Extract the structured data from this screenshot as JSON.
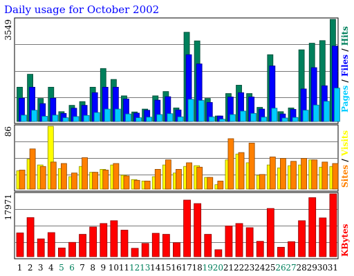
{
  "chart_data": [
    {
      "type": "bar",
      "title": "Daily usage for October 2002",
      "categories": [
        "1",
        "2",
        "3",
        "4",
        "5",
        "6",
        "7",
        "8",
        "9",
        "10",
        "11",
        "12",
        "13",
        "14",
        "15",
        "16",
        "17",
        "18",
        "19",
        "20",
        "21",
        "22",
        "23",
        "24",
        "25",
        "26",
        "27",
        "28",
        "29",
        "30",
        "31"
      ],
      "weekend_days": [
        "5",
        "6",
        "12",
        "13",
        "19",
        "20",
        "26",
        "27"
      ],
      "ymax_label": "3549",
      "ylim": [
        0,
        3549
      ],
      "grid": true,
      "legend": [
        "Pages",
        "/",
        "Files",
        "/",
        "Hits"
      ],
      "series": [
        {
          "name": "Hits",
          "color": "#00805c",
          "values": [
            1190,
            1640,
            800,
            1190,
            340,
            560,
            690,
            1190,
            1840,
            1460,
            890,
            330,
            430,
            890,
            1040,
            470,
            3100,
            2800,
            800,
            190,
            970,
            1260,
            970,
            490,
            2320,
            340,
            470,
            2490,
            2720,
            2810,
            3549
          ]
        },
        {
          "name": "Files",
          "color": "#0000ff",
          "values": [
            810,
            1190,
            620,
            810,
            280,
            460,
            560,
            1000,
            1190,
            1190,
            780,
            290,
            390,
            740,
            860,
            400,
            2320,
            2000,
            660,
            190,
            850,
            1000,
            850,
            430,
            1930,
            260,
            420,
            1130,
            1870,
            1240,
            2620
          ]
        },
        {
          "name": "Pages",
          "color": "#00ccff",
          "values": [
            220,
            390,
            180,
            220,
            130,
            170,
            210,
            310,
            430,
            430,
            260,
            130,
            150,
            240,
            270,
            160,
            770,
            730,
            160,
            80,
            240,
            360,
            280,
            150,
            460,
            120,
            140,
            390,
            570,
            700,
            1160
          ]
        }
      ]
    },
    {
      "type": "bar",
      "ymax_label": "86",
      "ylim": [
        0,
        86
      ],
      "grid": true,
      "legend": [
        "Sites",
        "/",
        "Visits"
      ],
      "series": [
        {
          "name": "Visits",
          "color": "#ffff00",
          "values": [
            25,
            41,
            33,
            86,
            28,
            17,
            31,
            23,
            27,
            33,
            19,
            13,
            11,
            17,
            33,
            22,
            31,
            32,
            16,
            6,
            40,
            48,
            36,
            19,
            33,
            29,
            32,
            33,
            40,
            30,
            31
          ]
        },
        {
          "name": "Sites",
          "color": "#ff8000",
          "values": [
            26,
            55,
            31,
            37,
            35,
            22,
            43,
            23,
            26,
            35,
            18,
            12,
            11,
            27,
            40,
            27,
            36,
            30,
            16,
            11,
            69,
            50,
            63,
            20,
            44,
            42,
            38,
            42,
            40,
            37,
            35
          ]
        }
      ]
    },
    {
      "type": "bar",
      "ymax_label": "17971",
      "ylim": [
        0,
        17971
      ],
      "grid": true,
      "legend": [
        "KBytes"
      ],
      "series": [
        {
          "name": "KBytes",
          "color": "#ff0000",
          "values": [
            6800,
            11200,
            5100,
            6900,
            2500,
            4100,
            6400,
            8500,
            9500,
            10300,
            7600,
            2400,
            3800,
            6700,
            6400,
            4000,
            16200,
            15200,
            6400,
            2000,
            8800,
            9500,
            8300,
            4400,
            13800,
            2700,
            4300,
            10300,
            16900,
            11100,
            17971
          ]
        }
      ]
    }
  ]
}
